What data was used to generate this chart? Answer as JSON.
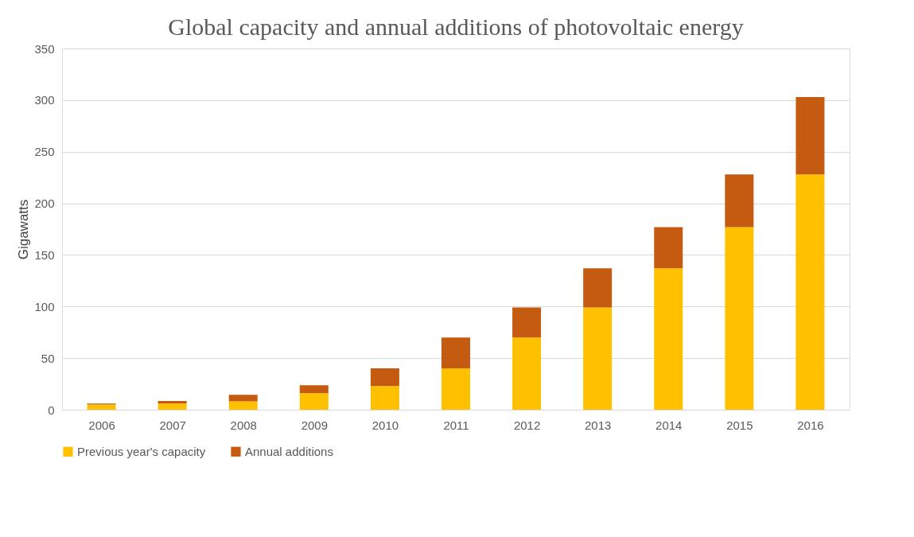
{
  "chart_data": {
    "type": "bar",
    "title": "Global capacity and annual additions of photovoltaic energy",
    "ylabel": "Gigawatts",
    "categories": [
      "2006",
      "2007",
      "2008",
      "2009",
      "2010",
      "2011",
      "2012",
      "2013",
      "2014",
      "2015",
      "2016"
    ],
    "series": [
      {
        "name": "Previous year's capacity",
        "color": "#ffc000",
        "values": [
          5,
          6,
          8,
          16,
          23,
          40,
          70,
          99,
          137,
          177,
          228
        ]
      },
      {
        "name": "Annual additions",
        "color": "#c55a11",
        "values": [
          1,
          2.5,
          6.5,
          7.7,
          17,
          30,
          29,
          38,
          40,
          51,
          75
        ]
      }
    ],
    "stacked": true,
    "ylim": [
      0,
      350
    ],
    "yticks": [
      0,
      50,
      100,
      150,
      200,
      250,
      300,
      350
    ],
    "grid": "y",
    "legend": "bottom"
  }
}
